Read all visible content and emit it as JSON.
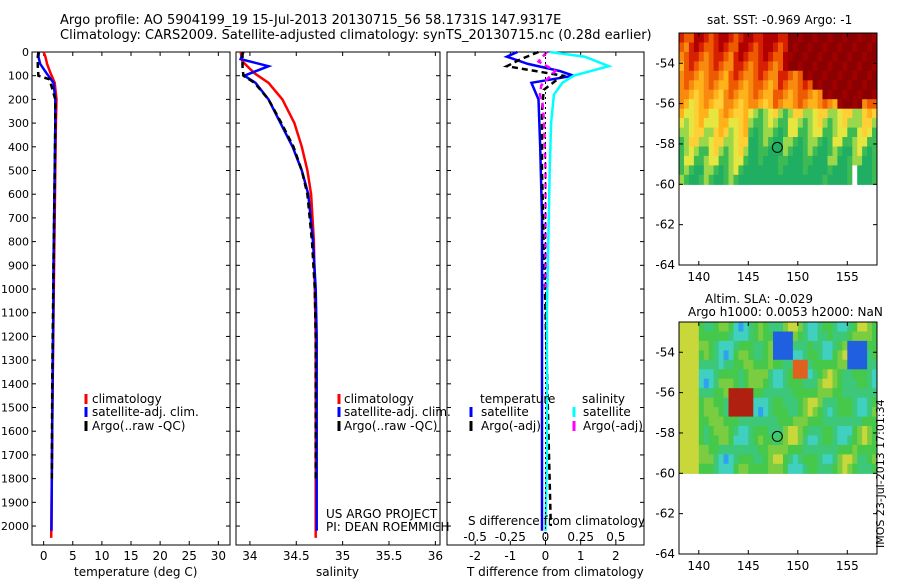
{
  "header": {
    "line1": "Argo profile: AO 5904199_19 15-Jul-2013 20130715_56 58.1731S 147.9317E",
    "line2": "Climatology: CARS2009. Satellite-adjusted climatology: synTS_20130715.nc (0.28d earlier)"
  },
  "colors": {
    "climatology": "#ff0000",
    "satellite": "#0000ff",
    "argo": "#000000",
    "satellite_s": "#00ffff",
    "argo_s": "#ff00ff"
  },
  "panels": {
    "temperature": {
      "xlabel": "temperature (deg C)",
      "xticks": [
        "0",
        "5",
        "10",
        "15",
        "20",
        "25",
        "30"
      ],
      "legend": [
        "climatology",
        "satellite-adj. clim.",
        "Argo(..raw -QC)"
      ]
    },
    "salinity": {
      "xlabel": "salinity",
      "xticks": [
        "34",
        "34.5",
        "35",
        "35.5",
        "36"
      ],
      "legend": [
        "climatology",
        "satellite-adj. clim.",
        "Argo(..raw -QC)"
      ],
      "project": "US ARGO PROJECT",
      "pi": "PI: DEAN ROEMMICH"
    },
    "difference": {
      "xlabel": "T difference from climatology",
      "xticks": [
        "-2",
        "-1",
        "0",
        "1",
        "2"
      ],
      "toplabel": "S difference from climatology",
      "topticks": [
        "-0.5",
        "-0.25",
        "0",
        "0.25",
        "0.5"
      ],
      "legend_t_title": "temperature",
      "legend_s_title": "salinity",
      "legend_t": [
        "satellite",
        "Argo(-adj)"
      ],
      "legend_s": [
        "satellite",
        "Argo(-adj)"
      ]
    },
    "yticks": [
      "0",
      "100",
      "200",
      "300",
      "400",
      "500",
      "600",
      "700",
      "800",
      "900",
      "1000",
      "1100",
      "1200",
      "1300",
      "1400",
      "1500",
      "1600",
      "1700",
      "1800",
      "1900",
      "2000"
    ]
  },
  "maps": {
    "sst": {
      "title": "sat. SST: -0.969 Argo: -1"
    },
    "sla": {
      "title1": "Altim. SLA: -0.029",
      "title2": "Argo h1000: 0.0053 h2000: NaN"
    },
    "xticks": [
      "140",
      "145",
      "150",
      "155"
    ],
    "yticks": [
      "-54",
      "-56",
      "-58",
      "-60",
      "-62",
      "-64"
    ]
  },
  "stamp": "IMOS 23-Jul-2013 17:01:34",
  "chart_data": [
    {
      "type": "line",
      "title": "",
      "xlabel": "temperature (deg C)",
      "ylabel": "",
      "xlim": [
        -2,
        32
      ],
      "ylim": [
        2080,
        0
      ],
      "series": [
        {
          "name": "climatology",
          "x": [
            0,
            0.3,
            0.6,
            1.2,
            1.9,
            2.2,
            2.1,
            2.0,
            1.9,
            1.8,
            1.7,
            1.6,
            1.5,
            1.4,
            1.3
          ],
          "y": [
            0,
            20,
            50,
            90,
            130,
            200,
            300,
            500,
            700,
            900,
            1100,
            1300,
            1500,
            1800,
            2050
          ]
        },
        {
          "name": "satellite-adj. clim.",
          "x": [
            -0.8,
            -0.9,
            -0.6,
            0.5,
            1.7,
            2.0,
            2.0,
            1.9,
            1.8,
            1.7,
            1.65,
            1.55,
            1.5,
            1.4,
            1.35
          ],
          "y": [
            0,
            20,
            50,
            90,
            130,
            200,
            300,
            500,
            700,
            900,
            1100,
            1300,
            1500,
            1800,
            2020
          ]
        },
        {
          "name": "Argo(..raw -QC)",
          "x": [
            -0.9,
            -1.0,
            -1.0,
            -0.9,
            1.0,
            2.0,
            2.0,
            1.9,
            1.8,
            1.7,
            1.6,
            1.5,
            1.45,
            1.4
          ],
          "y": [
            0,
            20,
            60,
            100,
            115,
            200,
            300,
            500,
            700,
            900,
            1100,
            1300,
            1500,
            1800
          ]
        }
      ]
    },
    {
      "type": "line",
      "title": "",
      "xlabel": "salinity",
      "ylabel": "",
      "xlim": [
        33.85,
        36.05
      ],
      "ylim": [
        2080,
        0
      ],
      "series": [
        {
          "name": "climatology",
          "x": [
            33.9,
            33.92,
            34.05,
            34.2,
            34.35,
            34.48,
            34.56,
            34.62,
            34.66,
            34.69,
            34.7,
            34.71,
            34.71,
            34.71,
            34.71
          ],
          "y": [
            0,
            40,
            90,
            130,
            200,
            300,
            400,
            500,
            600,
            800,
            1000,
            1200,
            1500,
            1800,
            2050
          ]
        },
        {
          "name": "satellite-adj. clim.",
          "x": [
            33.93,
            33.9,
            34.2,
            33.94,
            34.06,
            34.2,
            34.33,
            34.46,
            34.56,
            34.63,
            34.68,
            34.71,
            34.72,
            34.72,
            34.72,
            34.72
          ],
          "y": [
            0,
            30,
            60,
            100,
            130,
            200,
            300,
            400,
            500,
            600,
            800,
            1000,
            1200,
            1500,
            1800,
            2020
          ]
        },
        {
          "name": "Argo(..raw -QC)",
          "x": [
            33.92,
            33.92,
            33.93,
            34.05,
            34.2,
            34.34,
            34.47,
            34.56,
            34.62,
            34.67,
            34.7,
            34.71,
            34.71,
            34.71
          ],
          "y": [
            0,
            60,
            100,
            130,
            200,
            300,
            400,
            500,
            600,
            800,
            1000,
            1200,
            1500,
            1800
          ]
        }
      ]
    },
    {
      "type": "line",
      "title": "",
      "xlabel": "T difference from climatology",
      "x2label": "S difference from climatology",
      "xlim": [
        -2.8,
        2.8
      ],
      "x2lim": [
        -0.7,
        0.7
      ],
      "ylim": [
        2080,
        0
      ],
      "series": [
        {
          "name": "temperature satellite",
          "axis": "T",
          "x": [
            -0.8,
            -1.1,
            -0.5,
            0.4,
            0.8,
            -0.4,
            -0.2,
            -0.15,
            -0.1,
            -0.1,
            -0.1,
            -0.1,
            -0.1,
            -0.1
          ],
          "y": [
            0,
            20,
            50,
            80,
            100,
            130,
            200,
            400,
            700,
            1000,
            1300,
            1600,
            1900,
            2020
          ]
        },
        {
          "name": "temperature Argo(-adj)",
          "axis": "T",
          "x": [
            -0.2,
            -0.7,
            -1.1,
            0.5,
            0.3,
            -0.05,
            -0.1,
            -0.1,
            -0.05,
            0,
            0.05,
            0.1,
            0.15
          ],
          "y": [
            0,
            30,
            60,
            100,
            120,
            160,
            250,
            500,
            800,
            1100,
            1400,
            1700,
            2000
          ]
        },
        {
          "name": "salinity satellite",
          "axis": "S",
          "x": [
            0.03,
            0.28,
            0.45,
            0.2,
            0.12,
            0.06,
            0.04,
            0.03,
            0.02,
            0.01,
            0.01,
            0.01,
            0
          ],
          "y": [
            0,
            20,
            60,
            100,
            130,
            180,
            300,
            500,
            800,
            1100,
            1400,
            1700,
            2020
          ]
        },
        {
          "name": "salinity Argo(-adj)",
          "axis": "S",
          "x": [
            0.01,
            -0.05,
            0.07,
            0.02,
            -0.03,
            -0.04,
            -0.02,
            -0.01,
            0,
            0,
            0
          ],
          "y": [
            0,
            40,
            80,
            110,
            140,
            180,
            220,
            300,
            500,
            800,
            1000
          ]
        }
      ]
    },
    {
      "type": "heatmap",
      "title": "sat. SST: -0.969 Argo: -1",
      "xlim": [
        138,
        158
      ],
      "ylim": [
        -64,
        -52.5
      ],
      "data_extent": {
        "lon": [
          138,
          158
        ],
        "lat": [
          -60,
          -52.5
        ]
      },
      "argo_position": {
        "lon": 147.93,
        "lat": -58.17
      }
    },
    {
      "type": "heatmap",
      "title": "Altim. SLA: -0.029",
      "xlim": [
        138,
        158
      ],
      "ylim": [
        -64,
        -52.5
      ],
      "data_extent": {
        "lon": [
          138,
          158
        ],
        "lat": [
          -60,
          -52.5
        ]
      },
      "argo_position": {
        "lon": 147.93,
        "lat": -58.17
      }
    }
  ]
}
